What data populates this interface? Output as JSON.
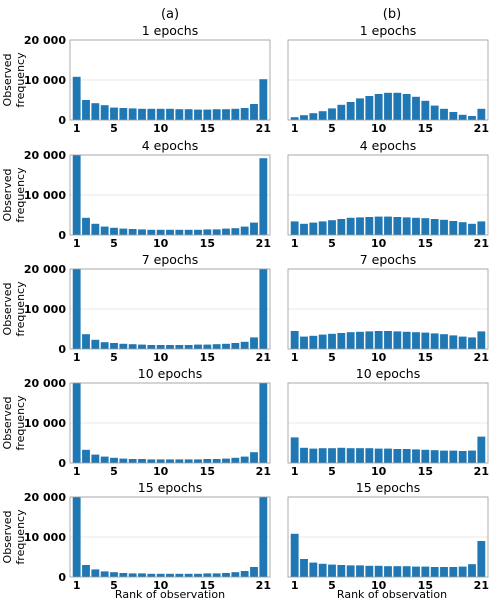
{
  "figure": {
    "column_labels": [
      "(a)",
      "(b)"
    ],
    "ylabel_line1": "Observed",
    "ylabel_line2": "frequency",
    "xlabel": "Rank of observation"
  },
  "chart_data": [
    {
      "type": "bar",
      "title": "1 epochs",
      "column": "(a)",
      "ylim": [
        0,
        20000
      ],
      "yticks": [
        "0",
        "10 000",
        "20 000"
      ],
      "xticks": [
        "1",
        "5",
        "10",
        "15",
        "21"
      ],
      "categories": [
        1,
        2,
        3,
        4,
        5,
        6,
        7,
        8,
        9,
        10,
        11,
        12,
        13,
        14,
        15,
        16,
        17,
        18,
        19,
        20,
        21
      ],
      "values": [
        10800,
        5000,
        4200,
        3700,
        3100,
        3000,
        2900,
        2800,
        2800,
        2800,
        2800,
        2700,
        2700,
        2600,
        2600,
        2700,
        2700,
        2800,
        3000,
        4000,
        10200
      ]
    },
    {
      "type": "bar",
      "title": "1 epochs",
      "column": "(b)",
      "ylim": [
        0,
        20000
      ],
      "yticks": [
        "0",
        "10 000",
        "20 000"
      ],
      "xticks": [
        "1",
        "5",
        "10",
        "15",
        "21"
      ],
      "categories": [
        1,
        2,
        3,
        4,
        5,
        6,
        7,
        8,
        9,
        10,
        11,
        12,
        13,
        14,
        15,
        16,
        17,
        18,
        19,
        20,
        21
      ],
      "values": [
        700,
        1200,
        1700,
        2200,
        2900,
        3800,
        4500,
        5400,
        6000,
        6500,
        6800,
        6800,
        6500,
        5800,
        4800,
        3600,
        2800,
        2000,
        1300,
        1000,
        2800
      ]
    },
    {
      "type": "bar",
      "title": "4 epochs",
      "column": "(a)",
      "ylim": [
        0,
        20000
      ],
      "yticks": [
        "0",
        "10 000",
        "20 000"
      ],
      "xticks": [
        "1",
        "5",
        "10",
        "15",
        "21"
      ],
      "categories": [
        1,
        2,
        3,
        4,
        5,
        6,
        7,
        8,
        9,
        10,
        11,
        12,
        13,
        14,
        15,
        16,
        17,
        18,
        19,
        20,
        21
      ],
      "values": [
        20000,
        4300,
        2800,
        2100,
        1800,
        1600,
        1500,
        1400,
        1300,
        1300,
        1300,
        1300,
        1300,
        1300,
        1400,
        1400,
        1600,
        1700,
        2100,
        3100,
        19200
      ]
    },
    {
      "type": "bar",
      "title": "4 epochs",
      "column": "(b)",
      "ylim": [
        0,
        20000
      ],
      "yticks": [
        "0",
        "10 000",
        "20 000"
      ],
      "xticks": [
        "1",
        "5",
        "10",
        "15",
        "21"
      ],
      "categories": [
        1,
        2,
        3,
        4,
        5,
        6,
        7,
        8,
        9,
        10,
        11,
        12,
        13,
        14,
        15,
        16,
        17,
        18,
        19,
        20,
        21
      ],
      "values": [
        3400,
        2800,
        3100,
        3400,
        3700,
        4000,
        4300,
        4400,
        4500,
        4600,
        4600,
        4500,
        4400,
        4300,
        4200,
        4000,
        3800,
        3500,
        3200,
        2800,
        3400
      ]
    },
    {
      "type": "bar",
      "title": "7 epochs",
      "column": "(a)",
      "ylim": [
        0,
        20000
      ],
      "yticks": [
        "0",
        "10 000",
        "20 000"
      ],
      "xticks": [
        "1",
        "5",
        "10",
        "15",
        "21"
      ],
      "categories": [
        1,
        2,
        3,
        4,
        5,
        6,
        7,
        8,
        9,
        10,
        11,
        12,
        13,
        14,
        15,
        16,
        17,
        18,
        19,
        20,
        21
      ],
      "values": [
        20000,
        3700,
        2300,
        1700,
        1500,
        1300,
        1200,
        1100,
        1000,
        1000,
        1000,
        1000,
        1000,
        1100,
        1100,
        1200,
        1300,
        1500,
        1800,
        2900,
        20000
      ]
    },
    {
      "type": "bar",
      "title": "7 epochs",
      "column": "(b)",
      "ylim": [
        0,
        20000
      ],
      "yticks": [
        "0",
        "10 000",
        "20 000"
      ],
      "xticks": [
        "1",
        "5",
        "10",
        "15",
        "21"
      ],
      "categories": [
        1,
        2,
        3,
        4,
        5,
        6,
        7,
        8,
        9,
        10,
        11,
        12,
        13,
        14,
        15,
        16,
        17,
        18,
        19,
        20,
        21
      ],
      "values": [
        4500,
        3100,
        3300,
        3600,
        3800,
        4000,
        4200,
        4300,
        4400,
        4500,
        4500,
        4400,
        4300,
        4200,
        4100,
        3900,
        3700,
        3400,
        3100,
        2900,
        4400
      ]
    },
    {
      "type": "bar",
      "title": "10 epochs",
      "column": "(a)",
      "ylim": [
        0,
        20000
      ],
      "yticks": [
        "0",
        "10 000",
        "20 000"
      ],
      "xticks": [
        "1",
        "5",
        "10",
        "15",
        "21"
      ],
      "categories": [
        1,
        2,
        3,
        4,
        5,
        6,
        7,
        8,
        9,
        10,
        11,
        12,
        13,
        14,
        15,
        16,
        17,
        18,
        19,
        20,
        21
      ],
      "values": [
        20000,
        3300,
        2100,
        1600,
        1300,
        1100,
        1000,
        1000,
        900,
        900,
        900,
        900,
        900,
        900,
        1000,
        1000,
        1100,
        1300,
        1600,
        2700,
        20000
      ]
    },
    {
      "type": "bar",
      "title": "10 epochs",
      "column": "(b)",
      "ylim": [
        0,
        20000
      ],
      "yticks": [
        "0",
        "10 000",
        "20 000"
      ],
      "xticks": [
        "1",
        "5",
        "10",
        "15",
        "21"
      ],
      "categories": [
        1,
        2,
        3,
        4,
        5,
        6,
        7,
        8,
        9,
        10,
        11,
        12,
        13,
        14,
        15,
        16,
        17,
        18,
        19,
        20,
        21
      ],
      "values": [
        6400,
        3800,
        3600,
        3700,
        3700,
        3800,
        3700,
        3700,
        3700,
        3600,
        3600,
        3500,
        3500,
        3400,
        3300,
        3200,
        3100,
        3100,
        3000,
        3100,
        6600
      ]
    },
    {
      "type": "bar",
      "title": "15 epochs",
      "column": "(a)",
      "ylim": [
        0,
        20000
      ],
      "yticks": [
        "0",
        "10 000",
        "20 000"
      ],
      "xticks": [
        "1",
        "5",
        "10",
        "15",
        "21"
      ],
      "categories": [
        1,
        2,
        3,
        4,
        5,
        6,
        7,
        8,
        9,
        10,
        11,
        12,
        13,
        14,
        15,
        16,
        17,
        18,
        19,
        20,
        21
      ],
      "values": [
        20000,
        3000,
        1900,
        1400,
        1200,
        1000,
        900,
        900,
        800,
        800,
        800,
        800,
        800,
        800,
        900,
        900,
        1000,
        1200,
        1500,
        2500,
        20000
      ]
    },
    {
      "type": "bar",
      "title": "15 epochs",
      "column": "(b)",
      "ylim": [
        0,
        20000
      ],
      "yticks": [
        "0",
        "10 000",
        "20 000"
      ],
      "xticks": [
        "1",
        "5",
        "10",
        "15",
        "21"
      ],
      "categories": [
        1,
        2,
        3,
        4,
        5,
        6,
        7,
        8,
        9,
        10,
        11,
        12,
        13,
        14,
        15,
        16,
        17,
        18,
        19,
        20,
        21
      ],
      "values": [
        10800,
        4500,
        3600,
        3300,
        3100,
        3000,
        2900,
        2900,
        2800,
        2800,
        2700,
        2700,
        2700,
        2600,
        2600,
        2500,
        2500,
        2500,
        2600,
        3200,
        9000
      ]
    }
  ]
}
